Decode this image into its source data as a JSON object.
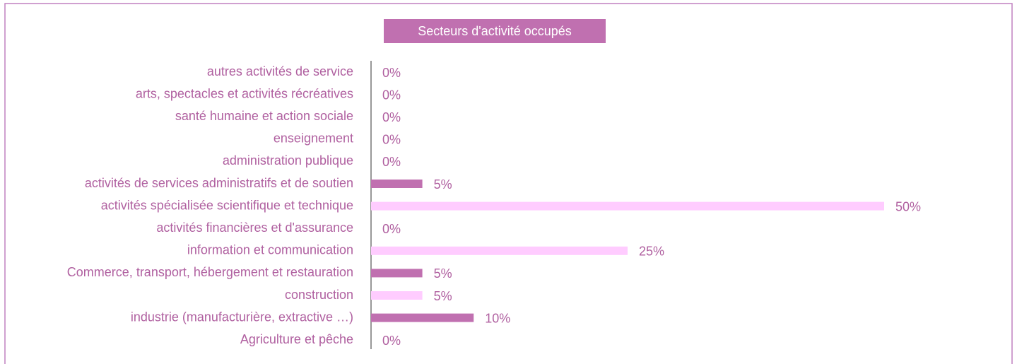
{
  "chart_data": {
    "type": "barh",
    "title": "Secteurs d'activité occupés",
    "categories": [
      "autres activités de service",
      "arts, spectacles et activités récréatives",
      "santé humaine et action sociale",
      "enseignement",
      "administration publique",
      "activités de services administratifs et de soutien",
      "activités spécialisée scientifique et technique",
      "activités financières et d'assurance",
      "information et communication",
      "Commerce, transport, hébergement et restauration",
      "construction",
      "industrie (manufacturière, extractive …)",
      "Agriculture et pêche"
    ],
    "values": [
      0,
      0,
      0,
      0,
      0,
      5,
      50,
      0,
      25,
      5,
      5,
      10,
      0
    ],
    "value_labels": [
      "0%",
      "0%",
      "0%",
      "0%",
      "0%",
      "5%",
      "50%",
      "0%",
      "25%",
      "5%",
      "5%",
      "10%",
      "0%"
    ],
    "colors": [
      "#ffccff",
      "#c070b0",
      "#ffccff",
      "#c070b0",
      "#ffccff",
      "#c070b0",
      "#ffccff",
      "#c070b0",
      "#ffccff",
      "#c070b0",
      "#ffccff",
      "#c070b0",
      "#ffccff"
    ]
  }
}
